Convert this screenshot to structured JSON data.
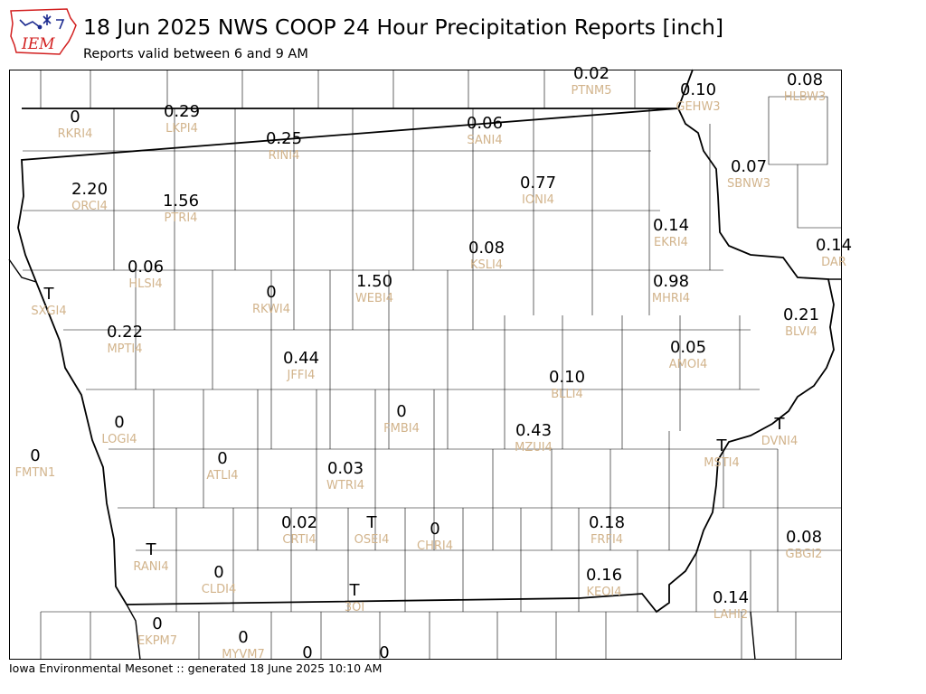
{
  "header": {
    "logo_text": "IEM",
    "title": "18 Jun 2025 NWS COOP 24 Hour Precipitation Reports [inch]",
    "subtitle": "Reports valid between 6 and 9 AM"
  },
  "footer": {
    "text": "Iowa Environmental Mesonet :: generated 18 June 2025 10:10 AM"
  },
  "colors": {
    "value": "#000000",
    "station": "#d2b48c",
    "border": "#000000",
    "county": "#000000",
    "logo_red": "#d21f1f",
    "logo_blue": "#1b2a8f"
  },
  "reports": [
    {
      "station": "PTNM5",
      "value": "0.02"
    },
    {
      "station": "GEHW3",
      "value": "0.10"
    },
    {
      "station": "HLBW3",
      "value": "0.08"
    },
    {
      "station": "RKRI4",
      "value": "0"
    },
    {
      "station": "LKPI4",
      "value": "0.29"
    },
    {
      "station": "RINI4",
      "value": "0.25"
    },
    {
      "station": "SANI4",
      "value": "0.06"
    },
    {
      "station": "SBNW3",
      "value": "0.07"
    },
    {
      "station": "ORCI4",
      "value": "2.20"
    },
    {
      "station": "PTRI4",
      "value": "1.56"
    },
    {
      "station": "IONI4",
      "value": "0.77"
    },
    {
      "station": "EKRI4",
      "value": "0.14"
    },
    {
      "station": "DAR",
      "value": "0.14"
    },
    {
      "station": "KSLI4",
      "value": "0.08"
    },
    {
      "station": "HLSI4",
      "value": "0.06"
    },
    {
      "station": "RKWI4",
      "value": "0"
    },
    {
      "station": "WEBI4",
      "value": "1.50"
    },
    {
      "station": "MHRI4",
      "value": "0.98"
    },
    {
      "station": "SXGI4",
      "value": "T"
    },
    {
      "station": "BLVI4",
      "value": "0.21"
    },
    {
      "station": "MPTI4",
      "value": "0.22"
    },
    {
      "station": "JFFI4",
      "value": "0.44"
    },
    {
      "station": "AMOI4",
      "value": "0.05"
    },
    {
      "station": "BLLI4",
      "value": "0.10"
    },
    {
      "station": "LOGI4",
      "value": "0"
    },
    {
      "station": "FMBI4",
      "value": "0"
    },
    {
      "station": "MZUI4",
      "value": "0.43"
    },
    {
      "station": "DVNI4",
      "value": "T"
    },
    {
      "station": "FMTN1",
      "value": "0"
    },
    {
      "station": "ATLI4",
      "value": "0"
    },
    {
      "station": "WTRI4",
      "value": "0.03"
    },
    {
      "station": "MSTI4",
      "value": "T"
    },
    {
      "station": "CRTI4",
      "value": "0.02"
    },
    {
      "station": "OSEI4",
      "value": "T"
    },
    {
      "station": "CHRI4",
      "value": "0"
    },
    {
      "station": "FRFI4",
      "value": "0.18"
    },
    {
      "station": "RANI4",
      "value": "T"
    },
    {
      "station": "CLDI4",
      "value": "0"
    },
    {
      "station": "GBGI2",
      "value": "0.08"
    },
    {
      "station": "KEOI4",
      "value": "0.16"
    },
    {
      "station": "3OI",
      "value": "T"
    },
    {
      "station": "LAHI2",
      "value": "0.14"
    },
    {
      "station": "EKPM7",
      "value": "0"
    },
    {
      "station": "MYVM7",
      "value": "0"
    },
    {
      "station": "",
      "value": "0"
    },
    {
      "station": "",
      "value": "0"
    }
  ]
}
